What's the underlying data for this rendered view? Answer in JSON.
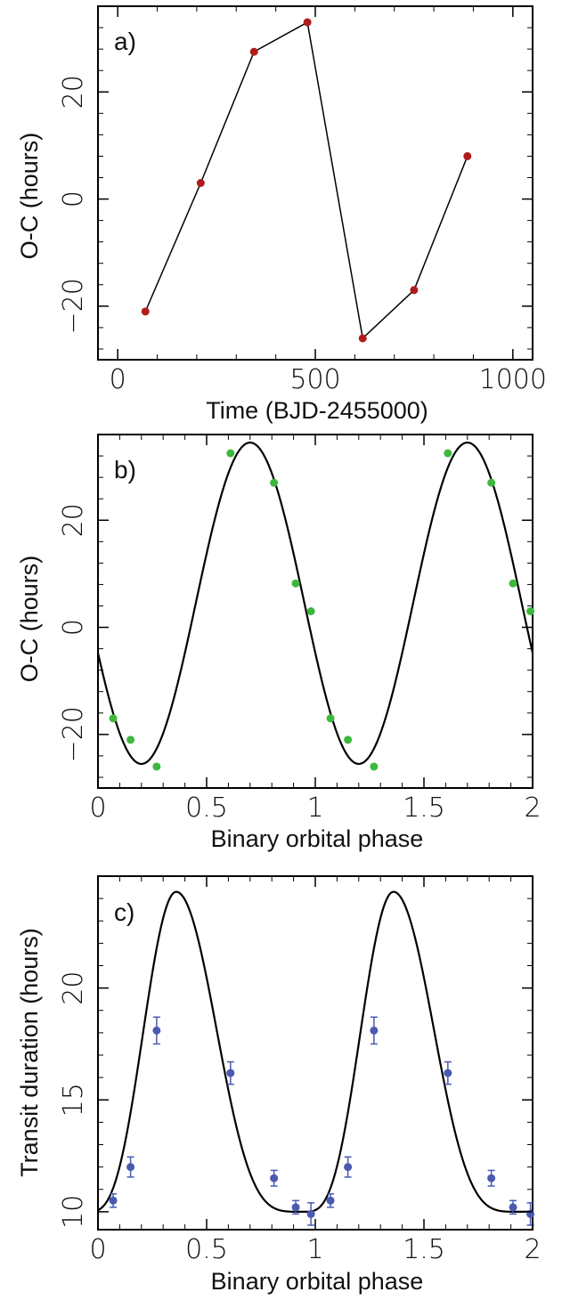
{
  "chart_data": [
    {
      "type": "line",
      "panel_label": "a)",
      "xlabel": "Time (BJD-2455000)",
      "ylabel": "O-C (hours)",
      "xlim": [
        -50,
        1050
      ],
      "ylim": [
        -30,
        36
      ],
      "xticks": [
        0,
        500,
        1000
      ],
      "yticks": [
        -20,
        0,
        20
      ],
      "xtick_labels": [
        "0",
        "500",
        "1000"
      ],
      "ytick_labels": [
        "−20",
        "0",
        "20"
      ],
      "grid": false,
      "series": [
        {
          "color": "#b01c1c",
          "x": [
            70,
            210,
            345,
            480,
            620,
            750,
            885
          ],
          "y": [
            -21,
            3,
            27.5,
            33,
            -26,
            -17,
            8
          ]
        }
      ]
    },
    {
      "type": "scatter",
      "panel_label": "b)",
      "xlabel": "Binary orbital phase",
      "ylabel": "O-C (hours)",
      "xlim": [
        0,
        2
      ],
      "ylim": [
        -30,
        36
      ],
      "xticks": [
        0,
        0.5,
        1,
        1.5,
        2
      ],
      "yticks": [
        -20,
        0,
        20
      ],
      "xtick_labels": [
        "0",
        "0.5",
        "1",
        "1.5",
        "2"
      ],
      "ytick_labels": [
        "−20",
        "0",
        "20"
      ],
      "grid": false,
      "points": {
        "color": "#3cb83c",
        "x": [
          0.07,
          0.15,
          0.27,
          0.61,
          0.81,
          0.91,
          0.98,
          1.07,
          1.15,
          1.27,
          1.61,
          1.81,
          1.91,
          1.99
        ],
        "y": [
          -17,
          -21,
          -26,
          32.5,
          27,
          8.2,
          3,
          -17,
          -21,
          -26,
          32.5,
          27,
          8.2,
          3
        ]
      },
      "model": {
        "color": "#000000",
        "kind": "sinusoid",
        "amplitude": 30,
        "offset": 4.5,
        "phase_of_max": 0.7,
        "period": 1
      }
    },
    {
      "type": "scatter",
      "panel_label": "c)",
      "xlabel": "Binary orbital phase",
      "ylabel": "Transit duration (hours)",
      "xlim": [
        0,
        2
      ],
      "ylim": [
        9.2,
        25
      ],
      "xticks": [
        0,
        0.5,
        1,
        1.5,
        2
      ],
      "yticks": [
        10,
        15,
        20
      ],
      "xtick_labels": [
        "0",
        "0.5",
        "1",
        "1.5",
        "2"
      ],
      "ytick_labels": [
        "10",
        "15",
        "20"
      ],
      "grid": false,
      "points": {
        "color": "#4a5ab0",
        "x": [
          0.07,
          0.15,
          0.27,
          0.61,
          0.81,
          0.91,
          0.98,
          1.07,
          1.15,
          1.27,
          1.61,
          1.81,
          1.91,
          1.99
        ],
        "y": [
          10.5,
          12,
          18.1,
          16.2,
          11.5,
          10.2,
          9.9,
          10.5,
          12,
          18.1,
          16.2,
          11.5,
          10.2,
          9.9
        ],
        "err": [
          0.3,
          0.45,
          0.6,
          0.5,
          0.35,
          0.3,
          0.5,
          0.3,
          0.45,
          0.6,
          0.5,
          0.35,
          0.3,
          0.5
        ]
      },
      "model": {
        "color": "#000000",
        "kind": "peaked",
        "baseline": 10,
        "peak": 24.3,
        "phase_of_peak": 0.36,
        "min_phase": 0.95,
        "period": 1
      }
    }
  ]
}
